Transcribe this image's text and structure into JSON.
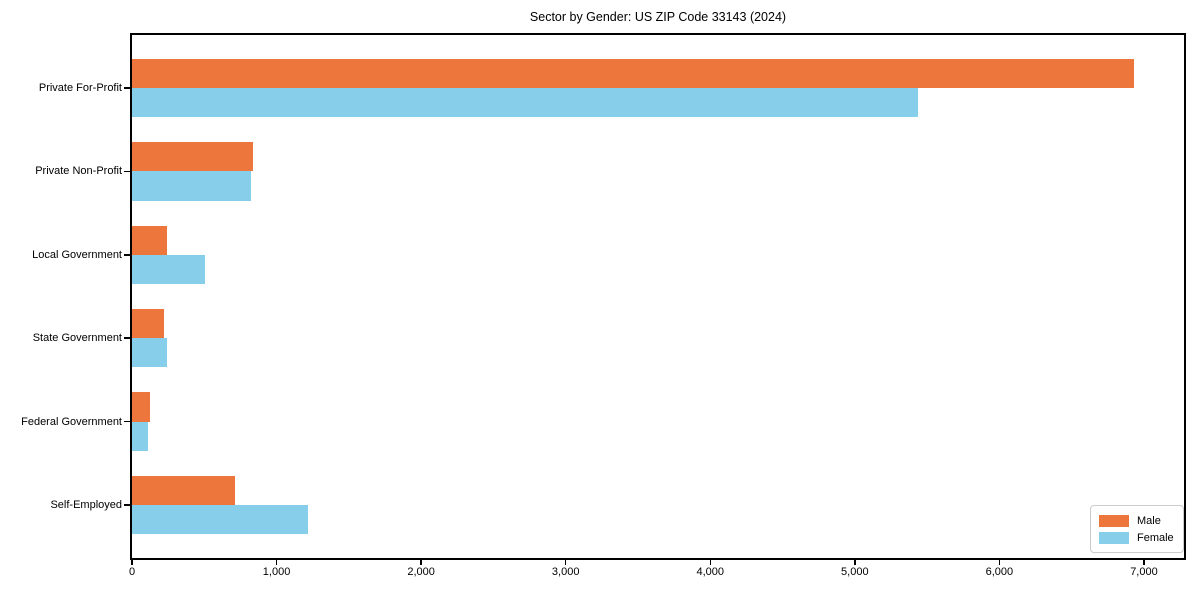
{
  "chart_data": {
    "type": "bar",
    "orientation": "horizontal",
    "title": "Sector by Gender: US ZIP Code 33143 (2024)",
    "categories": [
      "Private For-Profit",
      "Private Non-Profit",
      "Local Government",
      "State Government",
      "Federal Government",
      "Self-Employed"
    ],
    "series": [
      {
        "name": "Male",
        "color": "#ec763b",
        "values": [
          6930,
          840,
          240,
          222,
          126,
          710
        ]
      },
      {
        "name": "Female",
        "color": "#87ceeb",
        "values": [
          5440,
          820,
          505,
          243,
          110,
          1215
        ]
      }
    ],
    "xlim": [
      0,
      7277
    ],
    "xticks": [
      0,
      1000,
      2000,
      3000,
      4000,
      5000,
      6000,
      7000
    ],
    "xtick_labels": [
      "0",
      "1,000",
      "2,000",
      "3,000",
      "4,000",
      "5,000",
      "6,000",
      "7,000"
    ],
    "ylabel": "",
    "xlabel": "",
    "grid": false,
    "bar_height_fraction": 0.35,
    "legend_position": "lower right"
  }
}
